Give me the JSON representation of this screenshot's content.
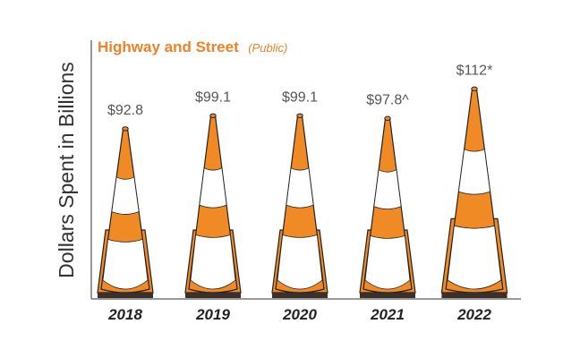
{
  "chart_data": {
    "type": "bar",
    "title": "Highway and Street",
    "subtitle": "(Public)",
    "ylabel": "Dollars Spent in Billions",
    "xlabel": "",
    "categories": [
      "2018",
      "2019",
      "2020",
      "2021",
      "2022"
    ],
    "values": [
      92.8,
      99.1,
      99.1,
      97.8,
      112
    ],
    "data_labels": [
      "$92.8",
      "$99.1",
      "$99.1",
      "$97.8^",
      "$112*"
    ],
    "mark_style": "traffic-cone",
    "grid": false,
    "legend": "none"
  },
  "colors": {
    "orange": "#f08a24",
    "outline": "#222222",
    "base": "#3b2f2a",
    "axis": "#777777",
    "label": "#555555",
    "title_main": "#ee8228",
    "title_sub": "#ee8228"
  }
}
